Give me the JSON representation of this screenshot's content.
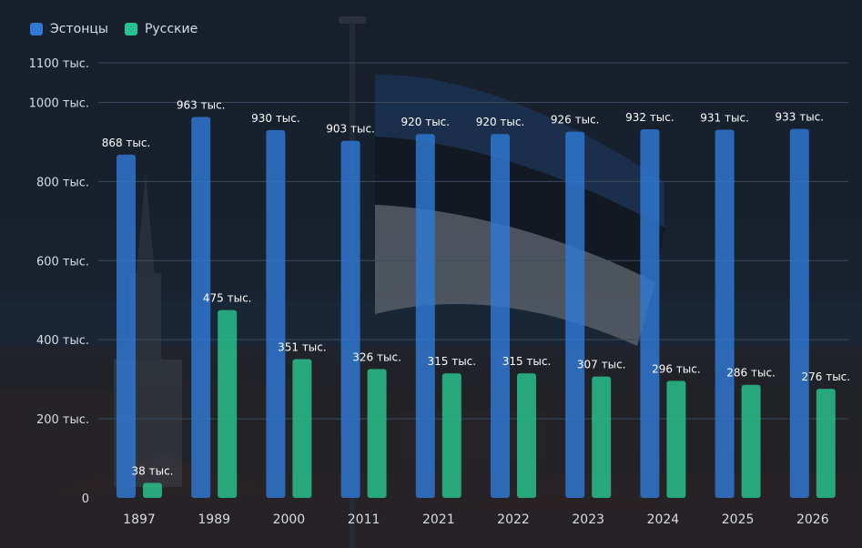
{
  "legend": {
    "estonians_label": "Эстонцы",
    "russians_label": "Русские"
  },
  "colors": {
    "estonians": "#2f79d6",
    "russians": "#28c48f",
    "gridline": "#3b4b5d",
    "axis_text": "#d7dde6",
    "label_text": "#ffffff"
  },
  "chart_data": {
    "type": "bar",
    "categories": [
      "1897",
      "1989",
      "2000",
      "2011",
      "2021",
      "2022",
      "2023",
      "2024",
      "2025",
      "2026"
    ],
    "series": [
      {
        "name": "Эстонцы",
        "values": [
          868,
          963,
          930,
          903,
          920,
          920,
          926,
          932,
          931,
          933
        ],
        "labels": [
          "868 тыс.",
          "963 тыс.",
          "930 тыс.",
          "903 тыс.",
          "920 тыс.",
          "920 тыс.",
          "926 тыс.",
          "932 тыс.",
          "931 тыс.",
          "933 тыс."
        ]
      },
      {
        "name": "Русские",
        "values": [
          38,
          475,
          351,
          326,
          315,
          315,
          307,
          296,
          286,
          276
        ],
        "labels": [
          "38 тыс.",
          "475 тыс.",
          "351 тыс.",
          "326 тыс.",
          "315 тыс.",
          "315 тыс.",
          "307 тыс.",
          "296 тыс.",
          "286 тыс.",
          "276 тыс."
        ]
      }
    ],
    "y_ticks": [
      {
        "value": 0,
        "label": "0"
      },
      {
        "value": 200,
        "label": "200 тыс."
      },
      {
        "value": 400,
        "label": "400 тыс."
      },
      {
        "value": 600,
        "label": "600 тыс."
      },
      {
        "value": 800,
        "label": "800 тыс."
      },
      {
        "value": 1000,
        "label": "1000 тыс."
      },
      {
        "value": 1100,
        "label": "1100 тыс."
      }
    ],
    "ylim": [
      0,
      1100
    ],
    "grid": true,
    "legend_position": "top-left",
    "xlabel": "",
    "ylabel": ""
  }
}
